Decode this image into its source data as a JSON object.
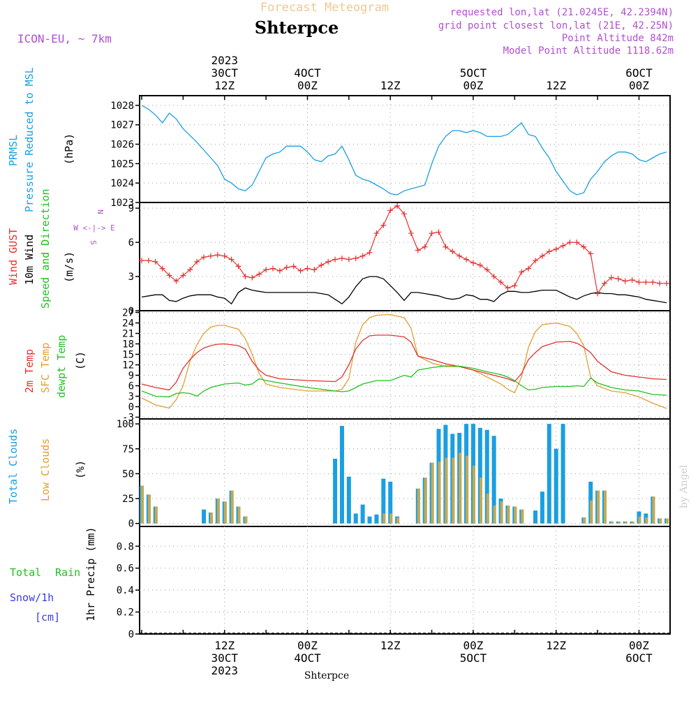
{
  "header": {
    "title": "Shterpce",
    "top_label": "Forecast Meteogram",
    "model": "ICON-EU, ~ 7km",
    "requested": "requested lon,lat (21.0245E, 42.2394N)",
    "gridpoint": "grid point closest lon,lat (21E, 42.25N)",
    "point_alt": "Point Altitude 842m",
    "model_alt": "Model Point Altitude 1118.62m",
    "credit": "by Angel",
    "footer": "Shterpce"
  },
  "time_axis": {
    "top_labels": [
      {
        "hour": 12,
        "lines": [
          "2023",
          "30CT",
          "12Z"
        ]
      },
      {
        "hour": 24,
        "lines": [
          "4OCT",
          "00Z"
        ]
      },
      {
        "hour": 36,
        "lines": [
          "12Z"
        ]
      },
      {
        "hour": 48,
        "lines": [
          "5OCT",
          "00Z"
        ]
      },
      {
        "hour": 60,
        "lines": [
          "12Z"
        ]
      },
      {
        "hour": 72,
        "lines": [
          "6OCT",
          "00Z"
        ]
      }
    ],
    "bottom_labels": [
      {
        "hour": 12,
        "lines": [
          "12Z",
          "30CT",
          "2023"
        ]
      },
      {
        "hour": 24,
        "lines": [
          "00Z",
          "4OCT"
        ]
      },
      {
        "hour": 36,
        "lines": [
          "12Z"
        ]
      },
      {
        "hour": 48,
        "lines": [
          "00Z",
          "5OCT"
        ]
      },
      {
        "hour": 60,
        "lines": [
          "12Z"
        ]
      },
      {
        "hour": 72,
        "lines": [
          "00Z",
          "6OCT"
        ]
      }
    ],
    "hour_range": [
      -0.3,
      76.5
    ]
  },
  "colors": {
    "pressure": "#1a9fe0",
    "gust": "#e53030",
    "wind": "#000000",
    "temp2m": "#e53030",
    "sfc": "#e0a030",
    "dewpt": "#22c022",
    "total_cloud": "#1a9fe0",
    "low_cloud": "#c8a850",
    "total_rain": "#22c022",
    "snow": "#3c3ce0",
    "model": "#b050d0"
  },
  "panel_labels": {
    "pressure": [
      "PRMSL",
      "Pressure Reduced to MSL",
      "(hPa)"
    ],
    "wind": [
      "Wind GUST",
      "10m Wind",
      "Speed and Direction",
      "(m/s)"
    ],
    "compass": [
      "N",
      "W <-|-> E",
      "S"
    ],
    "temp": [
      "2m Temp",
      "SFC Temp",
      "dewpt Temp",
      "(C)"
    ],
    "cloud": [
      "Total Clouds",
      "Low Clouds",
      "(%)"
    ],
    "precip": [
      "Total",
      "Rain",
      "Snow/1h",
      "[cm]",
      "1hr Precip (mm)"
    ]
  },
  "chart_data": [
    {
      "type": "line",
      "panel": "pressure",
      "ylabel": "(hPa)",
      "ylim": [
        1023,
        1028.5
      ],
      "yticks": [
        1023,
        1024,
        1025,
        1026,
        1027,
        1028
      ],
      "grid": true,
      "x": [
        0,
        1,
        2,
        3,
        4,
        5,
        6,
        8,
        10,
        11,
        12,
        13,
        14,
        15,
        16,
        17,
        18,
        19,
        20,
        21,
        22,
        23,
        24,
        25,
        26,
        27,
        28,
        29,
        30,
        31,
        32,
        33,
        34,
        35,
        36,
        37,
        38,
        39,
        40,
        41,
        42,
        43,
        44,
        45,
        46,
        47,
        48,
        49,
        50,
        51,
        52,
        53,
        54,
        55,
        56,
        57,
        58,
        59,
        60,
        61,
        62,
        63,
        64,
        65,
        66,
        67,
        68,
        69,
        70,
        71,
        72,
        73,
        74,
        75,
        76
      ],
      "series": [
        {
          "name": "PRMSL",
          "values": [
            1028,
            1027.8,
            1027.5,
            1027.1,
            1027.6,
            1027.3,
            1026.8,
            1026.1,
            1025.3,
            1024.9,
            1024.2,
            1024,
            1023.7,
            1023.6,
            1023.9,
            1024.6,
            1025.3,
            1025.5,
            1025.6,
            1025.9,
            1025.9,
            1025.9,
            1025.6,
            1025.2,
            1025.1,
            1025.4,
            1025.5,
            1025.9,
            1025.2,
            1024.4,
            1024.2,
            1024.1,
            1023.9,
            1023.7,
            1023.45,
            1023.4,
            1023.6,
            1023.7,
            1023.8,
            1023.9,
            1025,
            1025.9,
            1026.4,
            1026.7,
            1026.7,
            1026.6,
            1026.7,
            1026.6,
            1026.4,
            1026.4,
            1026.4,
            1026.5,
            1026.8,
            1027.1,
            1026.5,
            1026.4,
            1025.8,
            1025.3,
            1024.6,
            1024.1,
            1023.6,
            1023.4,
            1023.5,
            1024.2,
            1024.6,
            1025.1,
            1025.4,
            1025.6,
            1025.6,
            1025.5,
            1025.2,
            1025.1,
            1025.3,
            1025.5,
            1025.6
          ]
        }
      ]
    },
    {
      "type": "line",
      "panel": "wind",
      "ylabel": "(m/s)",
      "ylim": [
        0,
        9.5
      ],
      "yticks": [
        0,
        3,
        6,
        9
      ],
      "grid": true,
      "x": [
        0,
        1,
        2,
        3,
        4,
        5,
        6,
        7,
        8,
        9,
        10,
        11,
        12,
        13,
        14,
        15,
        16,
        17,
        18,
        19,
        20,
        21,
        22,
        23,
        24,
        25,
        26,
        27,
        28,
        29,
        30,
        31,
        32,
        33,
        34,
        35,
        36,
        37,
        38,
        39,
        40,
        41,
        42,
        43,
        44,
        45,
        46,
        47,
        48,
        49,
        50,
        51,
        52,
        53,
        54,
        55,
        56,
        57,
        58,
        59,
        60,
        61,
        62,
        63,
        64,
        65,
        66,
        67,
        68,
        69,
        70,
        71,
        72,
        73,
        74,
        75,
        76
      ],
      "series": [
        {
          "name": "Wind GUST",
          "values": [
            4.4,
            4.4,
            4.3,
            3.7,
            3.1,
            2.6,
            3.1,
            3.6,
            4.3,
            4.7,
            4.8,
            4.9,
            4.8,
            4.5,
            3.9,
            3.0,
            2.9,
            3.2,
            3.6,
            3.7,
            3.5,
            3.8,
            3.9,
            3.5,
            3.7,
            3.6,
            4.0,
            4.3,
            4.5,
            4.6,
            4.5,
            4.6,
            4.8,
            5.1,
            6.8,
            7.5,
            8.8,
            9.2,
            8.5,
            6.8,
            5.3,
            5.6,
            6.8,
            6.9,
            5.6,
            5.2,
            4.8,
            4.5,
            4.2,
            4.0,
            3.6,
            3.0,
            2.5,
            2.0,
            2.2,
            3.4,
            3.7,
            4.4,
            4.8,
            5.2,
            5.4,
            5.7,
            6.0,
            6.0,
            5.6,
            5.0,
            1.5,
            2.4,
            2.9,
            2.8,
            2.6,
            2.7,
            2.5,
            2.5,
            2.5,
            2.4,
            2.4
          ]
        },
        {
          "name": "10m Wind",
          "values": [
            1.2,
            1.3,
            1.4,
            1.4,
            0.9,
            0.8,
            1.1,
            1.3,
            1.4,
            1.4,
            1.4,
            1.2,
            1.1,
            0.6,
            1.6,
            2.0,
            1.8,
            1.7,
            1.6,
            1.6,
            1.6,
            1.6,
            1.6,
            1.6,
            1.6,
            1.6,
            1.5,
            1.4,
            1.0,
            0.6,
            1.2,
            2.1,
            2.8,
            3.0,
            3.0,
            2.8,
            2.2,
            1.6,
            0.9,
            1.6,
            1.6,
            1.5,
            1.4,
            1.3,
            1.1,
            1.0,
            1.1,
            1.4,
            1.3,
            1.0,
            1.0,
            0.8,
            1.4,
            1.7,
            1.7,
            1.6,
            1.6,
            1.7,
            1.8,
            1.8,
            1.8,
            1.5,
            1.2,
            1.0,
            1.3,
            1.5,
            1.6,
            1.5,
            1.5,
            1.4,
            1.4,
            1.3,
            1.2,
            1.0,
            0.9,
            0.8,
            0.7
          ]
        }
      ]
    },
    {
      "type": "line",
      "panel": "temperature",
      "ylabel": "(C)",
      "ylim": [
        -3.5,
        27.5
      ],
      "yticks": [
        -3,
        0,
        3,
        6,
        9,
        12,
        15,
        18,
        21,
        24,
        27
      ],
      "grid": true,
      "x": [
        0,
        2,
        4,
        5,
        6,
        7,
        8,
        9,
        10,
        11,
        12,
        14,
        15,
        16,
        17,
        18,
        20,
        24,
        28,
        29,
        30,
        31,
        32,
        33,
        34,
        36,
        38,
        39,
        40,
        42,
        44,
        46,
        48,
        50,
        52,
        53,
        54,
        55,
        56,
        57,
        58,
        60,
        62,
        63,
        64,
        65,
        66,
        68,
        70,
        72,
        74,
        76
      ],
      "series": [
        {
          "name": "2m Temp",
          "values": [
            6.5,
            5.5,
            4.8,
            7,
            11,
            13.5,
            15.5,
            16.8,
            17.5,
            17.9,
            18,
            17.5,
            16.5,
            13,
            10.5,
            9,
            8,
            7.5,
            7.2,
            8.5,
            12,
            16.5,
            19,
            20.3,
            20.5,
            20.5,
            20,
            18.5,
            14.5,
            13.5,
            12.3,
            11.5,
            10.5,
            9.5,
            8.5,
            8,
            7.2,
            9.5,
            13.5,
            15.5,
            17.2,
            18.5,
            18.7,
            18.2,
            17,
            15.5,
            13,
            10,
            9,
            8.5,
            8,
            7.8
          ]
        },
        {
          "name": "SFC Temp",
          "values": [
            2.5,
            0.5,
            -0.4,
            2,
            6,
            13,
            17.8,
            21,
            22.8,
            23.3,
            23.3,
            22.2,
            19.5,
            15,
            9.5,
            6.5,
            5.5,
            4.5,
            4.5,
            5,
            8,
            18.5,
            23.5,
            25.5,
            26.2,
            26.4,
            25.5,
            22.5,
            14.5,
            12.5,
            11.5,
            11.5,
            10.5,
            8.5,
            6.5,
            5,
            4,
            8.5,
            17,
            21.5,
            23.5,
            24,
            23,
            21,
            17.5,
            8.5,
            6,
            4.5,
            4,
            2.8,
            1,
            -0.5
          ]
        },
        {
          "name": "dewpt Temp",
          "values": [
            4.5,
            3,
            2.8,
            3.8,
            4,
            3.8,
            3,
            4.5,
            5.5,
            6,
            6.5,
            6.8,
            6.2,
            6.5,
            8,
            7.5,
            6.8,
            5.5,
            4.5,
            4.3,
            4.5,
            5.5,
            6.5,
            7,
            7.5,
            7.5,
            9,
            8.5,
            10.5,
            11.2,
            11.7,
            11.6,
            11,
            10,
            9.2,
            8.5,
            7.5,
            6,
            4.8,
            5,
            5.5,
            5.8,
            5.8,
            6,
            5.8,
            8.2,
            6.8,
            5.5,
            4.8,
            4.5,
            3.5,
            3.3
          ]
        }
      ]
    },
    {
      "type": "bar",
      "panel": "clouds",
      "ylabel": "(%)",
      "ylim": [
        -3,
        105
      ],
      "yticks": [
        0,
        25,
        50,
        75,
        100
      ],
      "grid": true,
      "x": [
        0,
        1,
        2,
        3,
        4,
        5,
        6,
        7,
        8,
        9,
        10,
        11,
        12,
        13,
        14,
        15,
        16,
        17,
        18,
        19,
        20,
        21,
        22,
        23,
        24,
        25,
        26,
        27,
        28,
        29,
        30,
        31,
        32,
        33,
        34,
        35,
        36,
        37,
        38,
        39,
        40,
        41,
        42,
        43,
        44,
        45,
        46,
        47,
        48,
        49,
        50,
        51,
        52,
        53,
        54,
        55,
        56,
        57,
        58,
        59,
        60,
        61,
        62,
        63,
        64,
        65,
        66,
        67,
        68,
        69,
        70,
        71,
        72,
        73,
        74,
        75,
        76
      ],
      "series": [
        {
          "name": "Total Clouds",
          "values": [
            38,
            29,
            17,
            0,
            0,
            0,
            0,
            0,
            0,
            14,
            11,
            25,
            22,
            33,
            17,
            7,
            0,
            0,
            0,
            0,
            0,
            0,
            0,
            0,
            0,
            0,
            0,
            0,
            65,
            98,
            47,
            10,
            19,
            7,
            9,
            45,
            42,
            7,
            0,
            0,
            35,
            46,
            61,
            95,
            99,
            90,
            91,
            100,
            100,
            96,
            94,
            88,
            25,
            18,
            17,
            14,
            0,
            13,
            32,
            100,
            75,
            100,
            0,
            0,
            6,
            42,
            33,
            33,
            2,
            2,
            2,
            2,
            12,
            10,
            27,
            5,
            5
          ]
        },
        {
          "name": "Low Clouds",
          "values": [
            38,
            29,
            17,
            0,
            0,
            0,
            0,
            0,
            0,
            0,
            11,
            25,
            22,
            33,
            17,
            7,
            0,
            0,
            0,
            0,
            0,
            0,
            0,
            0,
            0,
            0,
            0,
            0,
            0,
            0,
            0,
            0,
            0,
            0,
            0,
            10,
            10,
            6,
            0,
            0,
            35,
            46,
            61,
            62,
            66,
            66,
            71,
            68,
            58,
            46,
            30,
            18,
            22,
            18,
            17,
            14,
            0,
            0,
            0,
            0,
            0,
            0,
            0,
            0,
            6,
            23,
            33,
            33,
            2,
            2,
            2,
            2,
            7,
            6,
            27,
            5,
            5
          ]
        }
      ]
    },
    {
      "type": "bar",
      "panel": "precip",
      "ylabel": "1hr Precip (mm)",
      "ylim": [
        0,
        0.98
      ],
      "yticks": [
        0,
        0.2,
        0.4,
        0.6,
        0.8
      ],
      "grid": true,
      "series": [
        {
          "name": "Total Rain",
          "values": []
        },
        {
          "name": "Snow/1h",
          "values": []
        }
      ]
    }
  ]
}
